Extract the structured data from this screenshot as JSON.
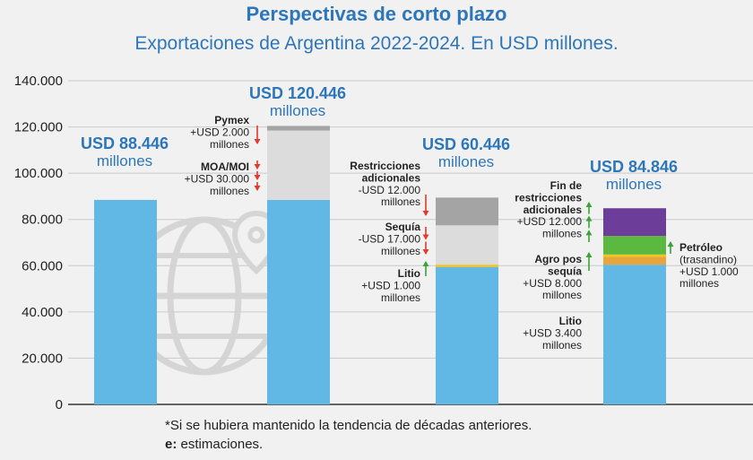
{
  "title": "Perspectivas de corto plazo",
  "subtitle": "Exportaciones de Argentina 2022-2024. En USD millones.",
  "footnote": "*Si se hubiera mantenido la tendencia de décadas anteriores.",
  "footnote_e_key": "e:",
  "footnote_e_text": " estimaciones.",
  "colors": {
    "base": "#62b8e4",
    "light_gray": "#dcdcdc",
    "mid_gray": "#a4a4a4",
    "lithium": "#f2c51c",
    "agro": "#5ab93e",
    "lithium_dark": "#e8a53b",
    "oil": "#6d3d9a",
    "title": "#2d76b9",
    "arrow_down": "#e23a2b",
    "arrow_up": "#3aa537"
  },
  "chart_data": {
    "type": "bar",
    "stacked": true,
    "ylim": [
      0,
      140000
    ],
    "yticks": [
      "0",
      "20.000",
      "40.000",
      "60.000",
      "80.000",
      "100.000",
      "120.000",
      "140.000"
    ],
    "ytick_values": [
      0,
      20000,
      40000,
      60000,
      80000,
      100000,
      120000,
      140000
    ],
    "grid": true,
    "bars": [
      {
        "total_line1": "USD 88.446",
        "total_line2": "millones",
        "segments": [
          {
            "value": 88446,
            "color_key": "base"
          }
        ],
        "annotations": []
      },
      {
        "total_line1": "USD 120.446",
        "total_line2": "millones",
        "segments": [
          {
            "value": 88446,
            "color_key": "base"
          },
          {
            "value": 30000,
            "color_key": "light_gray"
          },
          {
            "value": 2000,
            "color_key": "mid_gray"
          }
        ],
        "annotations": [
          {
            "bold": "Pymex",
            "lines": [
              "+USD 2.000",
              "millones"
            ],
            "arrow": "down"
          },
          {
            "bold": "MOA/MOI",
            "lines": [
              "+USD 30.000",
              "millones"
            ],
            "arrow": "down"
          }
        ]
      },
      {
        "total_line1": "USD 60.446",
        "total_line2": "millones",
        "segments": [
          {
            "value": 59446,
            "color_key": "base"
          },
          {
            "value": 1000,
            "color_key": "lithium"
          },
          {
            "value": 17000,
            "color_key": "light_gray"
          },
          {
            "value": 12000,
            "color_key": "mid_gray"
          }
        ],
        "annotations": [
          {
            "bold": "Restricciones adicionales",
            "lines": [
              "-USD 12.000",
              "millones"
            ],
            "arrow": "down"
          },
          {
            "bold": "Sequía",
            "lines": [
              "-USD 17.000",
              "millones"
            ],
            "arrow": "down"
          },
          {
            "bold": "Litio",
            "lines": [
              "+USD 1.000",
              "millones"
            ],
            "arrow": "up"
          }
        ]
      },
      {
        "total_line1": "USD 84.846",
        "total_line2": "millones",
        "segments": [
          {
            "value": 60446,
            "color_key": "base"
          },
          {
            "value": 3400,
            "color_key": "lithium_dark"
          },
          {
            "value": 1000,
            "color_key": "lithium"
          },
          {
            "value": 8000,
            "color_key": "agro"
          },
          {
            "value": 12000,
            "color_key": "oil"
          }
        ],
        "annotations": [
          {
            "bold": "Fin de restricciones adicionales",
            "lines": [
              "+USD 12.000",
              "millones"
            ],
            "arrow": "up"
          },
          {
            "bold": "Agro pos sequía",
            "lines": [
              "+USD 8.000",
              "millones"
            ],
            "arrow": "up"
          },
          {
            "bold": "Litio",
            "lines": [
              "+USD 3.400",
              "millones"
            ],
            "arrow": "none"
          },
          {
            "bold": "Petróleo",
            "lines": [
              "(trasandino)",
              "+USD 1.000",
              "millones"
            ],
            "arrow": "up"
          }
        ]
      }
    ]
  }
}
